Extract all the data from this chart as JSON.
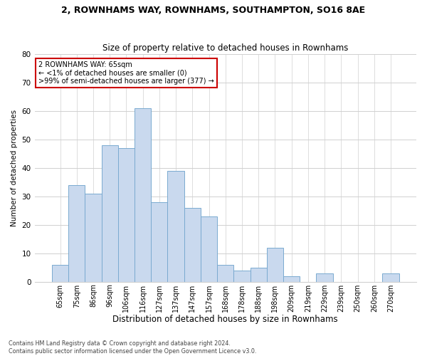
{
  "title1": "2, ROWNHAMS WAY, ROWNHAMS, SOUTHAMPTON, SO16 8AE",
  "title2": "Size of property relative to detached houses in Rownhams",
  "xlabel": "Distribution of detached houses by size in Rownhams",
  "ylabel": "Number of detached properties",
  "categories": [
    "65sqm",
    "75sqm",
    "86sqm",
    "96sqm",
    "106sqm",
    "116sqm",
    "127sqm",
    "137sqm",
    "147sqm",
    "157sqm",
    "168sqm",
    "178sqm",
    "188sqm",
    "198sqm",
    "209sqm",
    "219sqm",
    "229sqm",
    "239sqm",
    "250sqm",
    "260sqm",
    "270sqm"
  ],
  "values": [
    6,
    34,
    31,
    48,
    47,
    61,
    28,
    39,
    26,
    23,
    6,
    4,
    5,
    12,
    2,
    0,
    3,
    0,
    0,
    0,
    3
  ],
  "bar_color": "#c9d9ee",
  "bar_edge_color": "#7aaad0",
  "annotation_box_text": "2 ROWNHAMS WAY: 65sqm\n← <1% of detached houses are smaller (0)\n>99% of semi-detached houses are larger (377) →",
  "annotation_box_color": "#ffffff",
  "annotation_box_edge_color": "#cc0000",
  "ylim": [
    0,
    80
  ],
  "yticks": [
    0,
    10,
    20,
    30,
    40,
    50,
    60,
    70,
    80
  ],
  "footnote": "Contains HM Land Registry data © Crown copyright and database right 2024.\nContains public sector information licensed under the Open Government Licence v3.0.",
  "bg_color": "#ffffff",
  "grid_color": "#d0d0d0"
}
